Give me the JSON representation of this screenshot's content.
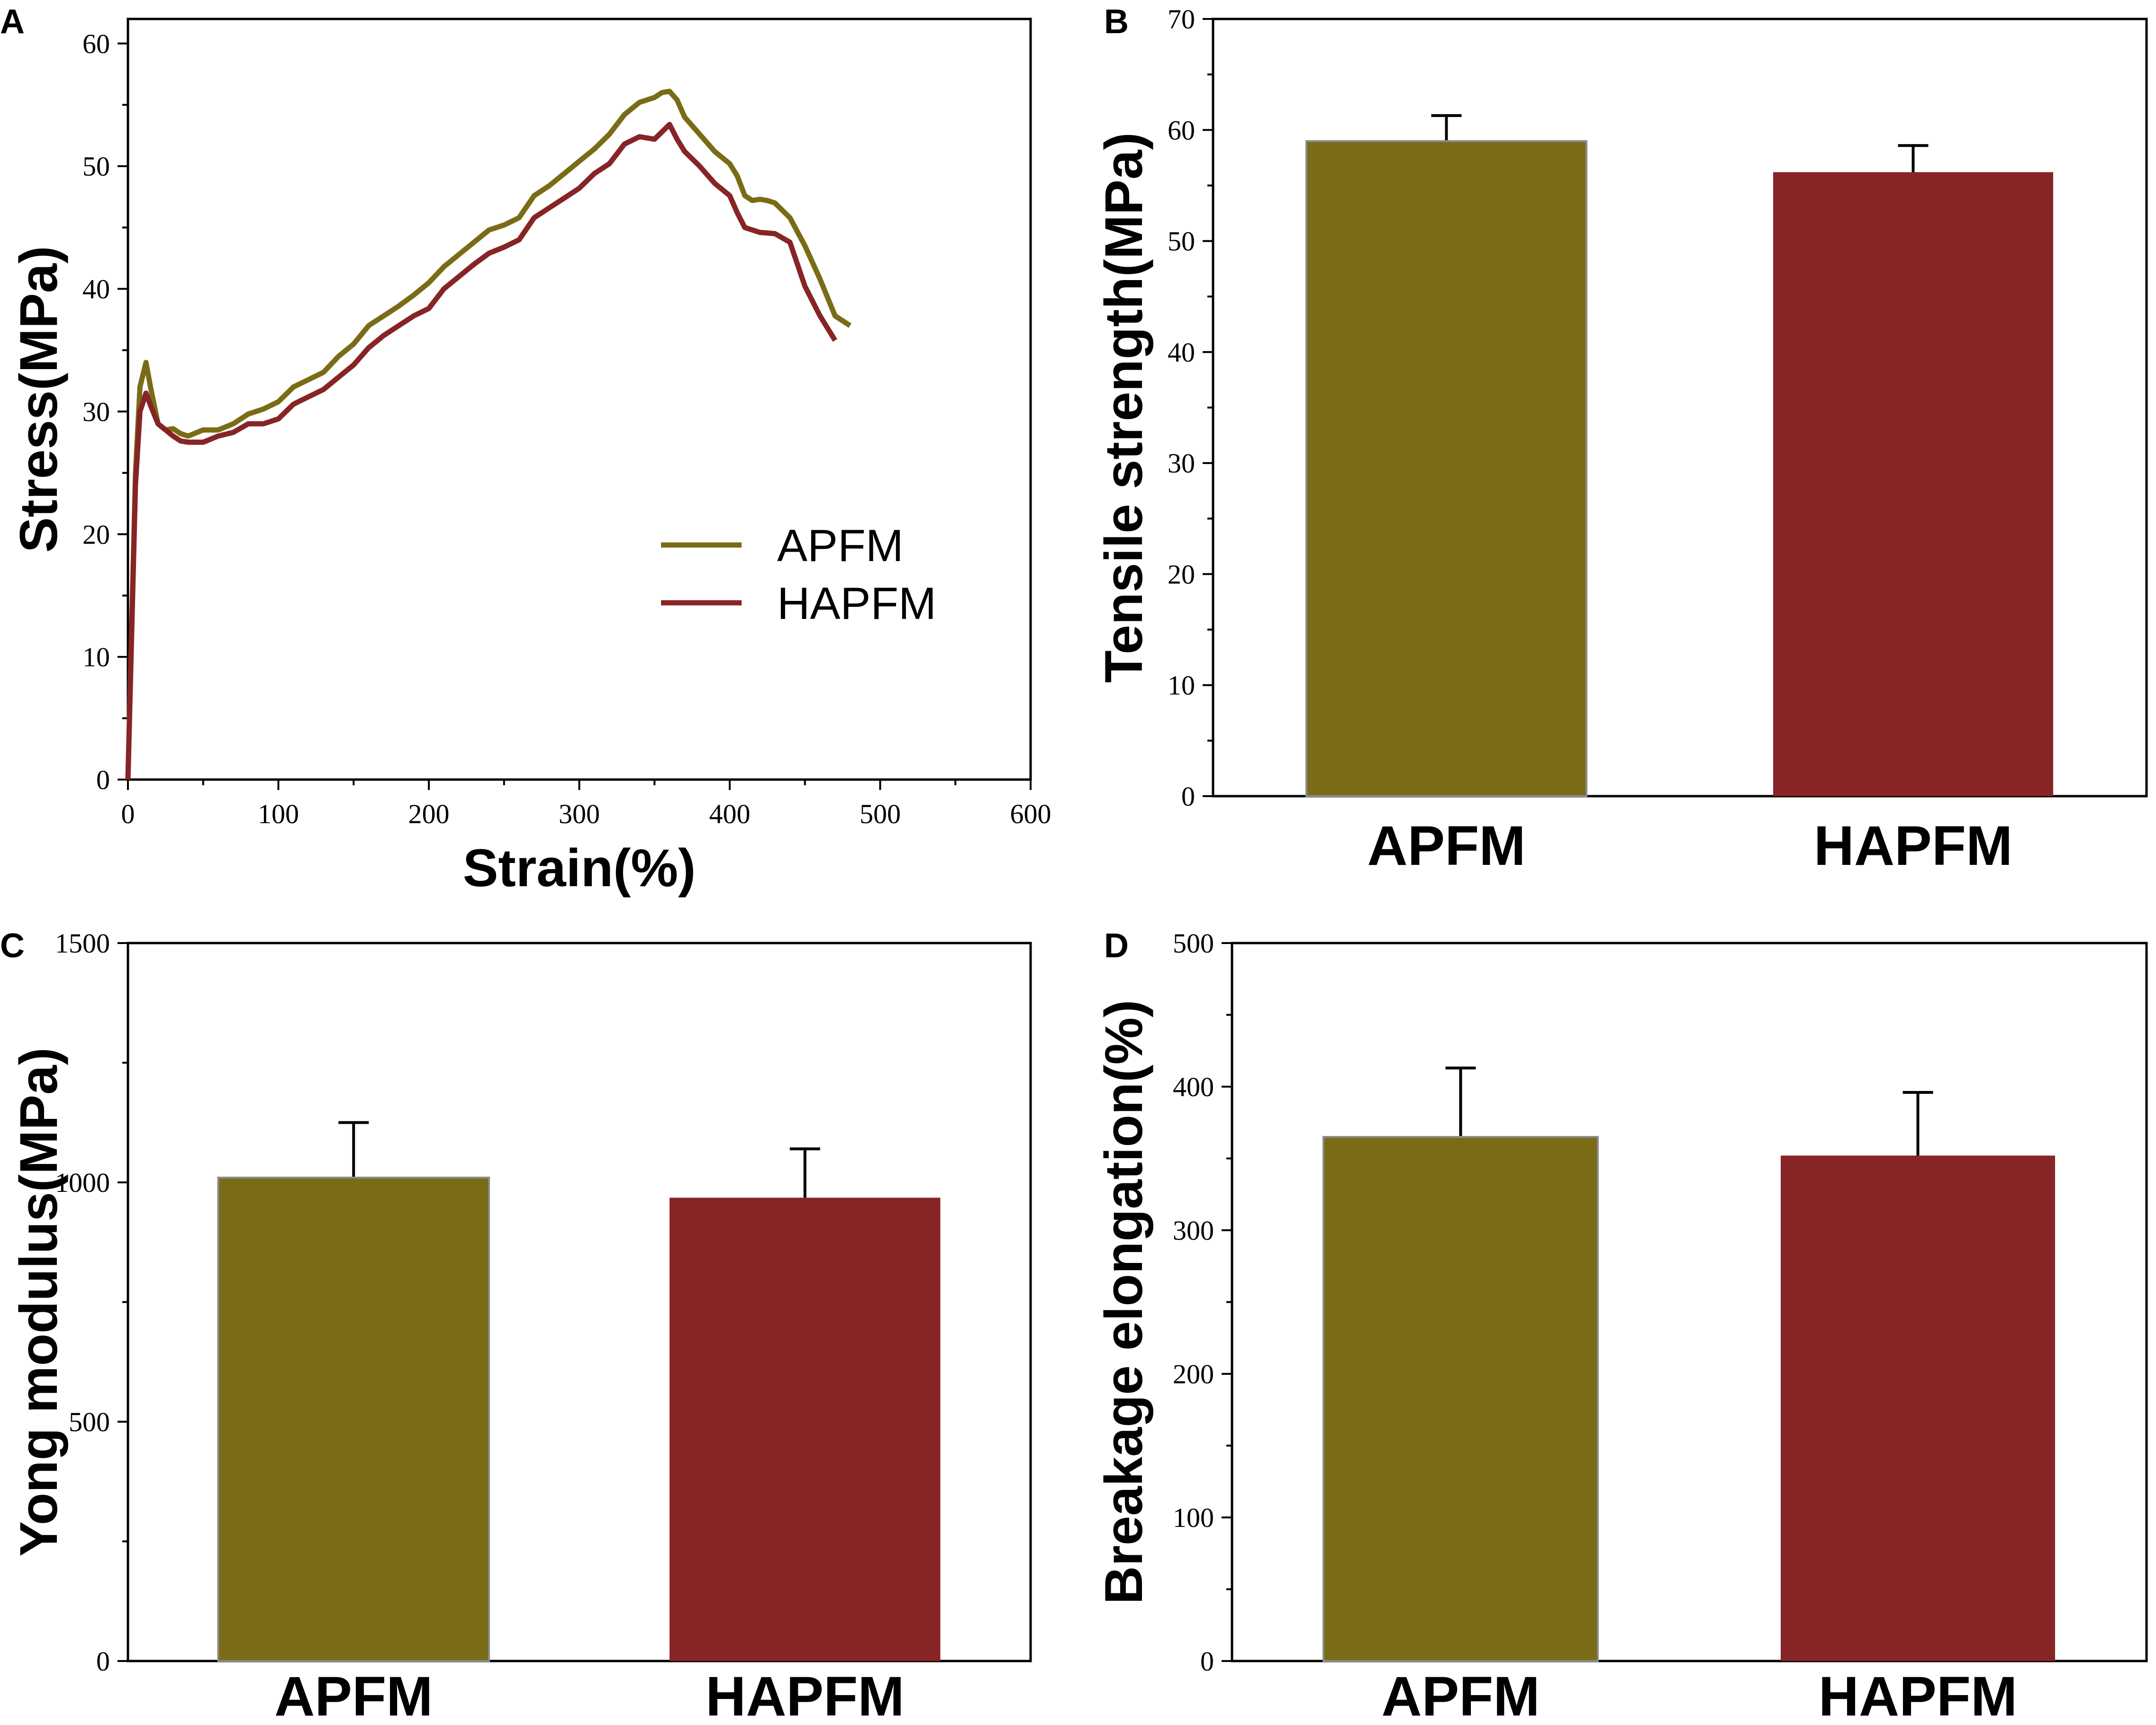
{
  "colors": {
    "apfm": "#7a6c16",
    "hapfm": "#872426",
    "axis": "#000000"
  },
  "chart_data": [
    {
      "panel": "A",
      "type": "line",
      "xlabel": "Strain(%)",
      "ylabel": "Stress(MPa)",
      "xlim": [
        0,
        600
      ],
      "ylim": [
        0,
        62
      ],
      "xticks": [
        0,
        100,
        200,
        300,
        400,
        500,
        600
      ],
      "yticks": [
        0,
        10,
        20,
        30,
        40,
        50,
        60
      ],
      "legend_position": "center-right",
      "series": [
        {
          "name": "APFM",
          "color": "#7a6c16",
          "x": [
            0,
            5,
            8,
            12,
            15,
            20,
            25,
            30,
            35,
            40,
            50,
            60,
            70,
            80,
            90,
            100,
            110,
            120,
            130,
            140,
            150,
            160,
            170,
            180,
            190,
            200,
            210,
            220,
            230,
            240,
            250,
            260,
            270,
            280,
            290,
            300,
            310,
            320,
            330,
            340,
            350,
            355,
            360,
            365,
            370,
            380,
            390,
            400,
            405,
            410,
            415,
            420,
            425,
            430,
            440,
            450,
            460,
            470,
            480
          ],
          "y": [
            0,
            25,
            32,
            34,
            32,
            29,
            28.5,
            28.6,
            28.2,
            28,
            28.5,
            28.5,
            29,
            29.8,
            30.2,
            30.8,
            32,
            32.6,
            33.2,
            34.5,
            35.5,
            37,
            37.8,
            38.6,
            39.5,
            40.5,
            41.8,
            42.8,
            43.8,
            44.8,
            45.2,
            45.8,
            47.6,
            48.4,
            49.4,
            50.4,
            51.4,
            52.6,
            54.2,
            55.2,
            55.6,
            56.0,
            56.1,
            55.4,
            54,
            52.6,
            51.2,
            50.2,
            49.2,
            47.6,
            47.2,
            47.3,
            47.2,
            47.0,
            45.8,
            43.5,
            40.8,
            37.8,
            37.0
          ]
        },
        {
          "name": "HAPFM",
          "color": "#872426",
          "x": [
            0,
            5,
            8,
            12,
            15,
            20,
            25,
            30,
            35,
            40,
            50,
            60,
            70,
            80,
            90,
            100,
            110,
            120,
            130,
            140,
            150,
            160,
            170,
            180,
            190,
            200,
            210,
            220,
            230,
            240,
            250,
            260,
            270,
            280,
            290,
            300,
            310,
            320,
            330,
            340,
            350,
            355,
            360,
            365,
            370,
            380,
            390,
            400,
            405,
            410,
            420,
            430,
            440,
            450,
            460,
            470
          ],
          "y": [
            0,
            24,
            30,
            31.5,
            30.5,
            29,
            28.5,
            28,
            27.6,
            27.5,
            27.5,
            28,
            28.3,
            29,
            29,
            29.4,
            30.6,
            31.2,
            31.8,
            32.8,
            33.8,
            35.2,
            36.2,
            37,
            37.8,
            38.4,
            40,
            41,
            42,
            42.9,
            43.4,
            44,
            45.8,
            46.6,
            47.4,
            48.2,
            49.4,
            50.2,
            51.8,
            52.4,
            52.2,
            52.8,
            53.4,
            52.2,
            51.2,
            50,
            48.6,
            47.6,
            46.2,
            45,
            44.6,
            44.5,
            43.8,
            40.2,
            37.8,
            35.8
          ]
        }
      ]
    },
    {
      "panel": "B",
      "type": "bar",
      "xlabel": "",
      "ylabel": "Tensile strength(MPa)",
      "ylim": [
        0,
        70
      ],
      "yticks": [
        0,
        10,
        20,
        30,
        40,
        50,
        60,
        70
      ],
      "categories": [
        "APFM",
        "HAPFM"
      ],
      "values": [
        59,
        56.2
      ],
      "errors": [
        2.3,
        2.4
      ],
      "colors": [
        "#7a6c16",
        "#872426"
      ]
    },
    {
      "panel": "C",
      "type": "bar",
      "xlabel": "",
      "ylabel": "Yong modulus(MPa)",
      "ylim": [
        0,
        1500
      ],
      "yticks": [
        0,
        500,
        1000,
        1500
      ],
      "categories": [
        "APFM",
        "HAPFM"
      ],
      "values": [
        1010,
        968
      ],
      "errors": [
        115,
        102
      ],
      "colors": [
        "#7a6c16",
        "#872426"
      ]
    },
    {
      "panel": "D",
      "type": "bar",
      "xlabel": "",
      "ylabel": "Breakage elongation(%)",
      "ylim": [
        0,
        500
      ],
      "yticks": [
        0,
        100,
        200,
        300,
        400,
        500
      ],
      "categories": [
        "APFM",
        "HAPFM"
      ],
      "values": [
        365,
        352
      ],
      "errors": [
        48,
        44
      ],
      "colors": [
        "#7a6c16",
        "#872426"
      ]
    }
  ]
}
